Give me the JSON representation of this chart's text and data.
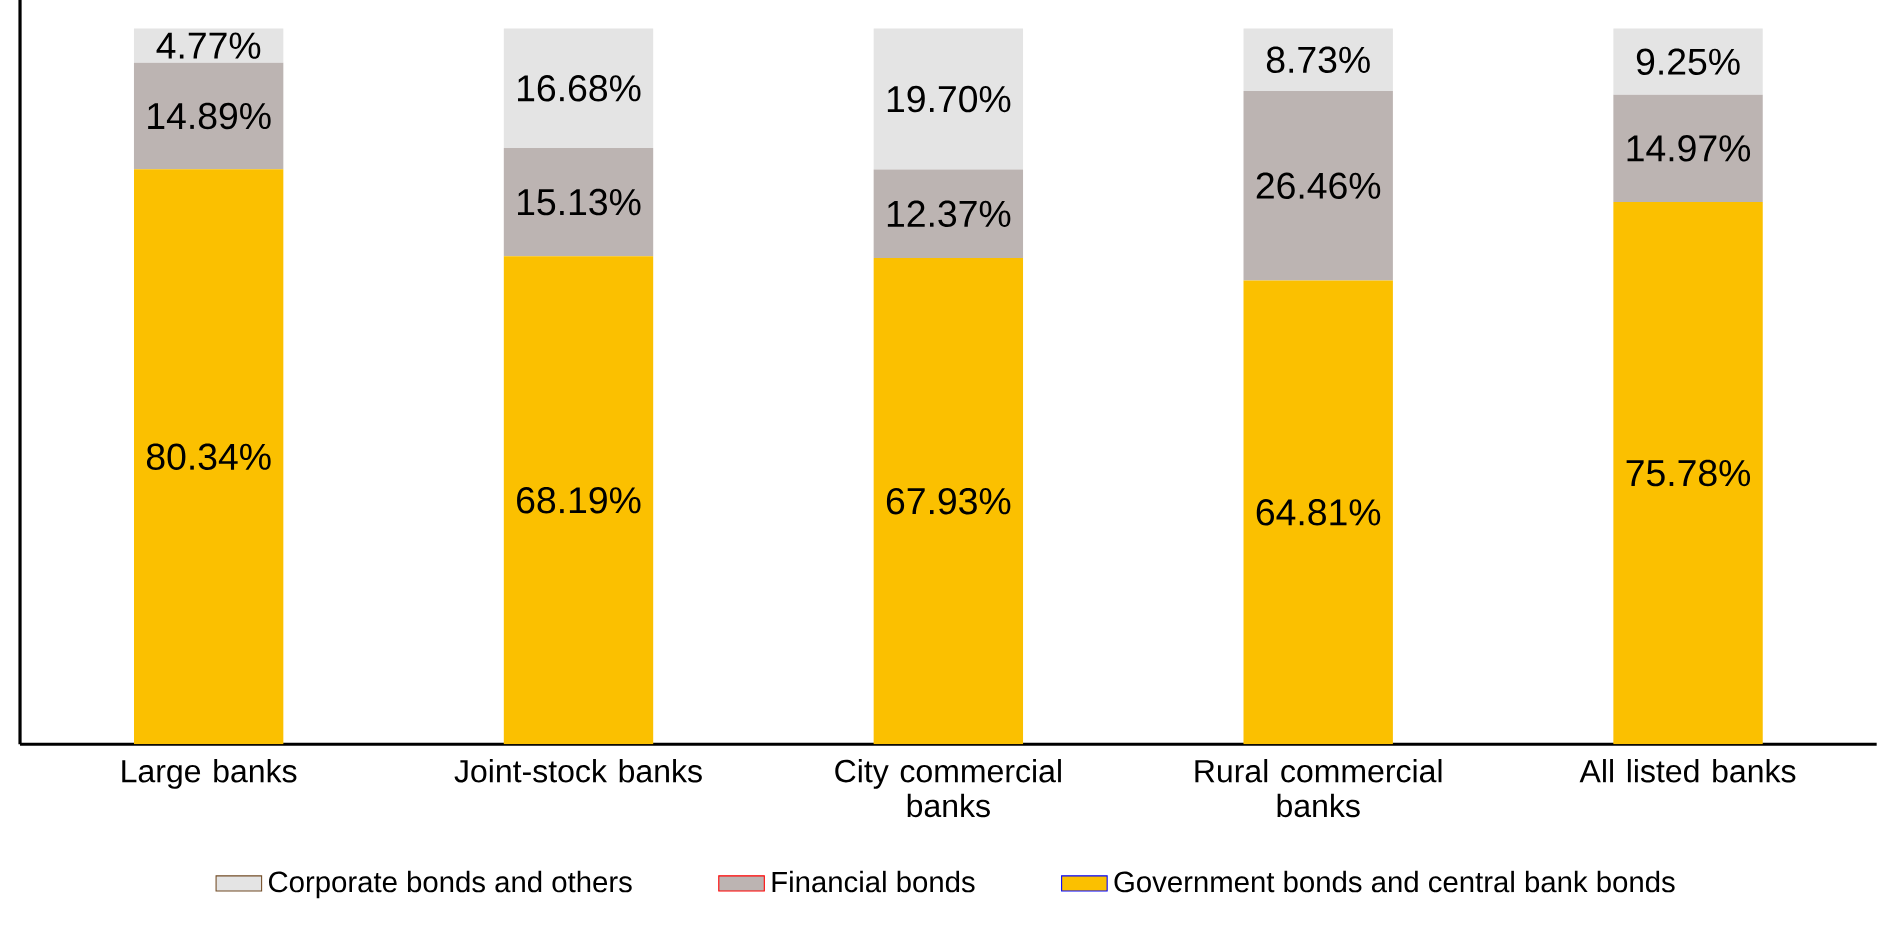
{
  "chart_data": {
    "type": "bar",
    "stacked": true,
    "categories": [
      "Large banks",
      "Joint-stock banks",
      "City commercial banks",
      "Rural commercial banks",
      "All listed banks"
    ],
    "series": [
      {
        "name": "Government bonds and central bank bonds",
        "color": "#fbc000",
        "values": [
          80.34,
          68.19,
          67.93,
          64.81,
          75.78
        ],
        "value_labels": [
          "80.34%",
          "68.19%",
          "67.93%",
          "64.81%",
          "75.78%"
        ]
      },
      {
        "name": "Financial bonds",
        "color": "#bcb4b2",
        "values": [
          14.89,
          15.13,
          12.37,
          26.46,
          14.97
        ],
        "value_labels": [
          "14.89%",
          "15.13%",
          "12.37%",
          "26.46%",
          "14.97%"
        ]
      },
      {
        "name": "Corporate bonds and others",
        "color": "#e4e4e4",
        "values": [
          4.77,
          16.68,
          19.7,
          8.73,
          9.25
        ],
        "value_labels": [
          "4.77%",
          "16.68%",
          "19.70%",
          "8.73%",
          "9.25%"
        ]
      }
    ],
    "ylim": [
      0,
      104
    ],
    "legend": "bottom"
  }
}
